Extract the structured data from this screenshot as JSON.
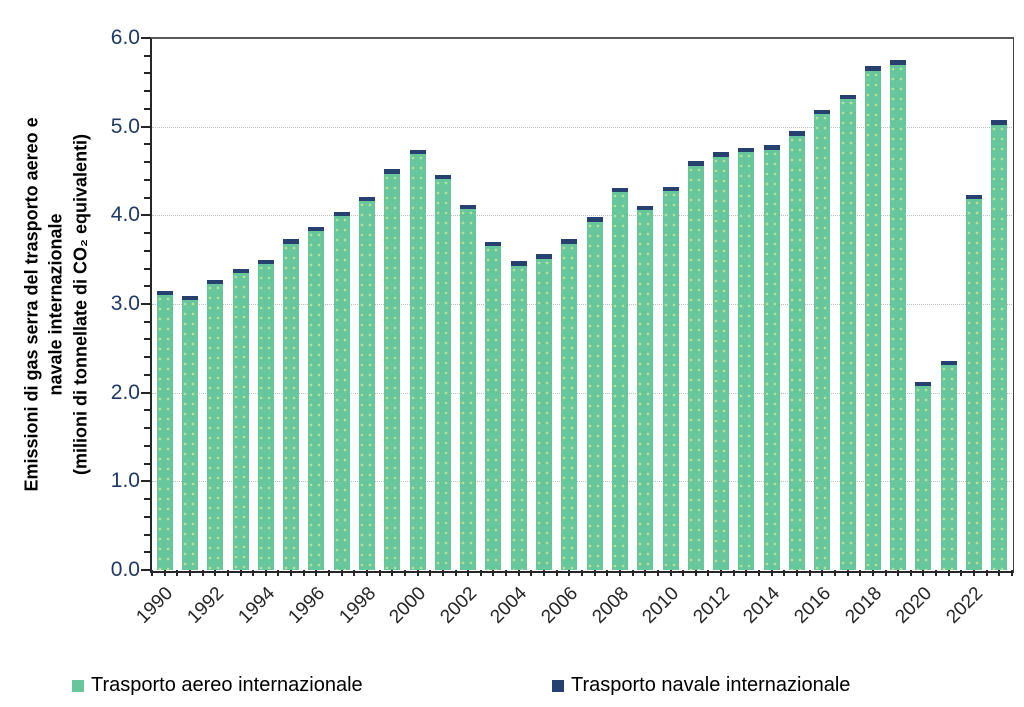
{
  "y_axis": {
    "title_lines": [
      "Emissioni  di gas serra del trasporto  aereo e",
      "navale internazionale",
      "(milioni di tonnellate di CO₂ equivalenti)"
    ],
    "tick_labels": [
      "0.0",
      "1.0",
      "2.0",
      "3.0",
      "4.0",
      "5.0",
      "6.0"
    ],
    "min": 0,
    "max": 6,
    "minor_tick_step": 0.2
  },
  "x_axis": {
    "visible_tick_labels": [
      "1990",
      "1992",
      "1994",
      "1996",
      "1998",
      "2000",
      "2002",
      "2004",
      "2006",
      "2008",
      "2010",
      "2012",
      "2014",
      "2016",
      "2018",
      "2020",
      "2022"
    ]
  },
  "legend": {
    "items": [
      {
        "label": "Trasporto aereo internazionale",
        "color": "#67C69B"
      },
      {
        "label": "Trasporto navale internazionale",
        "color": "#26406F"
      }
    ]
  },
  "colors": {
    "aereo": "#67C69B",
    "navale": "#26406F",
    "gridline": "#bfbfbf",
    "axis": "#262626",
    "y_tick_label": "#1F3864",
    "x_tick_label": "#262626"
  },
  "chart_data": {
    "type": "bar",
    "stacked": true,
    "x": [
      1990,
      1991,
      1992,
      1993,
      1994,
      1995,
      1996,
      1997,
      1998,
      1999,
      2000,
      2001,
      2002,
      2003,
      2004,
      2005,
      2006,
      2007,
      2008,
      2009,
      2010,
      2011,
      2012,
      2013,
      2014,
      2015,
      2016,
      2017,
      2018,
      2019,
      2020,
      2021,
      2022,
      2023
    ],
    "series": [
      {
        "name": "Trasporto aereo internazionale",
        "color": "#67C69B",
        "values": [
          3.1,
          3.04,
          3.22,
          3.35,
          3.45,
          3.68,
          3.82,
          3.99,
          4.16,
          4.47,
          4.69,
          4.41,
          4.07,
          3.65,
          3.43,
          3.51,
          3.68,
          3.93,
          4.26,
          4.06,
          4.27,
          4.56,
          4.66,
          4.71,
          4.74,
          4.9,
          5.14,
          5.31,
          5.63,
          5.7,
          2.07,
          2.31,
          4.18,
          5.02
        ]
      },
      {
        "name": "Trasporto navale internazionale",
        "color": "#26406F",
        "values": [
          0.05,
          0.05,
          0.05,
          0.05,
          0.05,
          0.05,
          0.05,
          0.05,
          0.05,
          0.05,
          0.05,
          0.05,
          0.05,
          0.05,
          0.05,
          0.05,
          0.05,
          0.05,
          0.05,
          0.05,
          0.05,
          0.05,
          0.05,
          0.05,
          0.05,
          0.05,
          0.05,
          0.05,
          0.05,
          0.05,
          0.05,
          0.05,
          0.05,
          0.05
        ]
      }
    ],
    "title": "",
    "xlabel": "",
    "ylabel": "Emissioni di gas serra del trasporto aereo e navale internazionale (milioni di tonnellate di CO₂ equivalenti)",
    "ylim": [
      0,
      6
    ],
    "grid": "horizontal-dotted",
    "legend_position": "bottom"
  }
}
